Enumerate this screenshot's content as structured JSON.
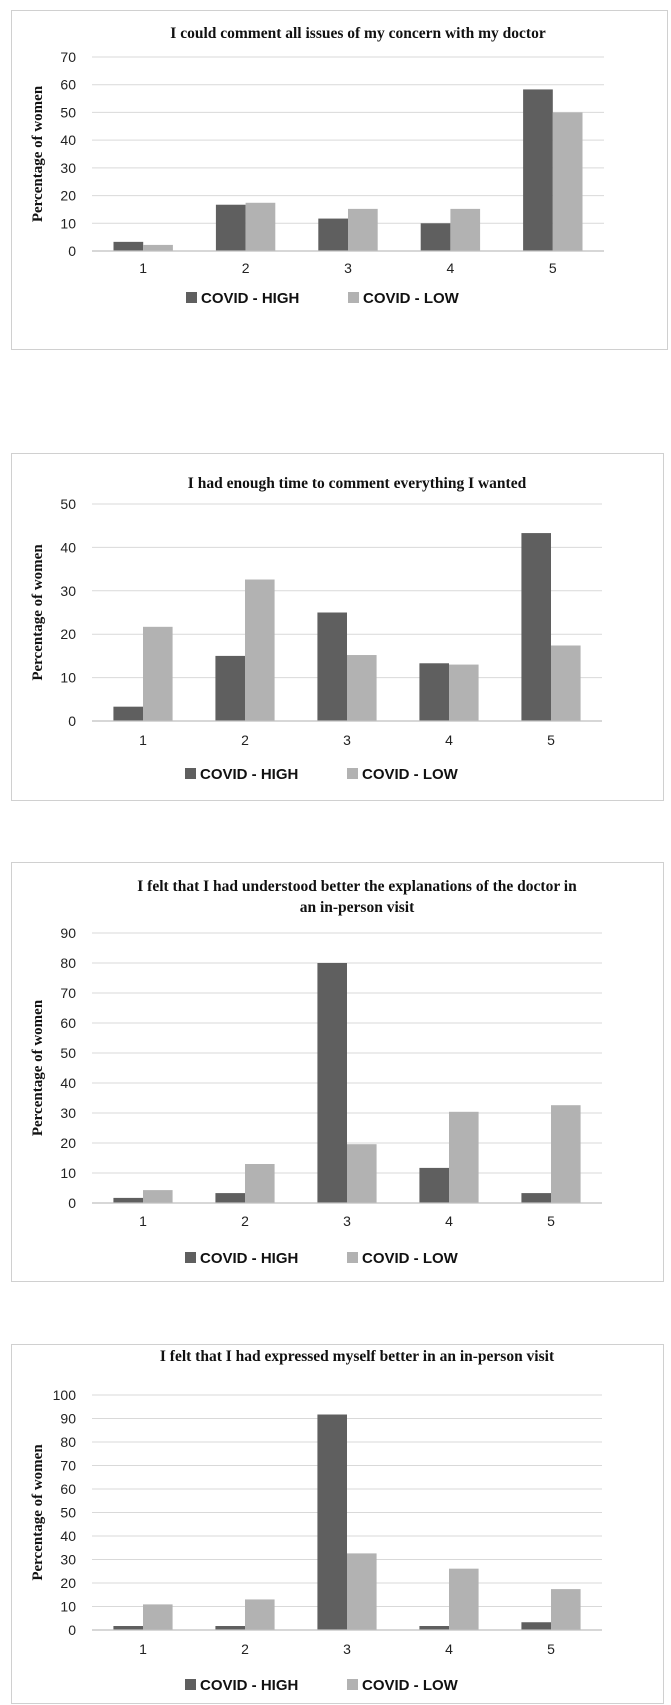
{
  "chart_data": [
    {
      "type": "bar",
      "title": [
        "I could comment all issues of my concern with my doctor"
      ],
      "ylabel": "Percentage of women",
      "categories": [
        "1",
        "2",
        "3",
        "4",
        "5"
      ],
      "ylim": [
        0,
        70
      ],
      "yticks": [
        0,
        10,
        20,
        30,
        40,
        50,
        60,
        70
      ],
      "grid": true,
      "legend_position": "bottom",
      "series": [
        {
          "name": "COVID - HIGH",
          "color": "#5f5f5f",
          "values": [
            3.3,
            16.7,
            11.7,
            10.0,
            58.3
          ]
        },
        {
          "name": "COVID - LOW",
          "color": "#b2b2b2",
          "values": [
            2.2,
            17.4,
            15.2,
            15.2,
            50.0
          ]
        }
      ]
    },
    {
      "type": "bar",
      "title": [
        "I had enough time to comment everything I wanted"
      ],
      "ylabel": "Percentage of women",
      "categories": [
        "1",
        "2",
        "3",
        "4",
        "5"
      ],
      "ylim": [
        0,
        50
      ],
      "yticks": [
        0,
        10,
        20,
        30,
        40,
        50
      ],
      "grid": true,
      "legend_position": "bottom",
      "series": [
        {
          "name": "COVID - HIGH",
          "color": "#5f5f5f",
          "values": [
            3.3,
            15.0,
            25.0,
            13.3,
            43.3
          ]
        },
        {
          "name": "COVID - LOW",
          "color": "#b2b2b2",
          "values": [
            21.7,
            32.6,
            15.2,
            13.0,
            17.4
          ]
        }
      ]
    },
    {
      "type": "bar",
      "title": [
        "I felt that I had understood better the explanations of the doctor in",
        "an in-person visit"
      ],
      "ylabel": "Percentage of women",
      "categories": [
        "1",
        "2",
        "3",
        "4",
        "5"
      ],
      "ylim": [
        0,
        90
      ],
      "yticks": [
        0,
        10,
        20,
        30,
        40,
        50,
        60,
        70,
        80,
        90
      ],
      "grid": true,
      "legend_position": "bottom",
      "series": [
        {
          "name": "COVID - HIGH",
          "color": "#5f5f5f",
          "values": [
            1.7,
            3.3,
            80.0,
            11.7,
            3.3
          ]
        },
        {
          "name": "COVID - LOW",
          "color": "#b2b2b2",
          "values": [
            4.3,
            13.0,
            19.6,
            30.4,
            32.6
          ]
        }
      ]
    },
    {
      "type": "bar",
      "title": [
        "I felt that I had expressed myself better in an in-person visit"
      ],
      "ylabel": "Percentage of women",
      "categories": [
        "1",
        "2",
        "3",
        "4",
        "5"
      ],
      "ylim": [
        0,
        100
      ],
      "yticks": [
        0,
        10,
        20,
        30,
        40,
        50,
        60,
        70,
        80,
        90,
        100
      ],
      "grid": true,
      "legend_position": "bottom",
      "series": [
        {
          "name": "COVID - HIGH",
          "color": "#5f5f5f",
          "values": [
            1.7,
            1.7,
            91.7,
            1.7,
            3.3
          ]
        },
        {
          "name": "COVID - LOW",
          "color": "#b2b2b2",
          "values": [
            10.9,
            13.0,
            32.6,
            26.1,
            17.4
          ]
        }
      ]
    }
  ]
}
